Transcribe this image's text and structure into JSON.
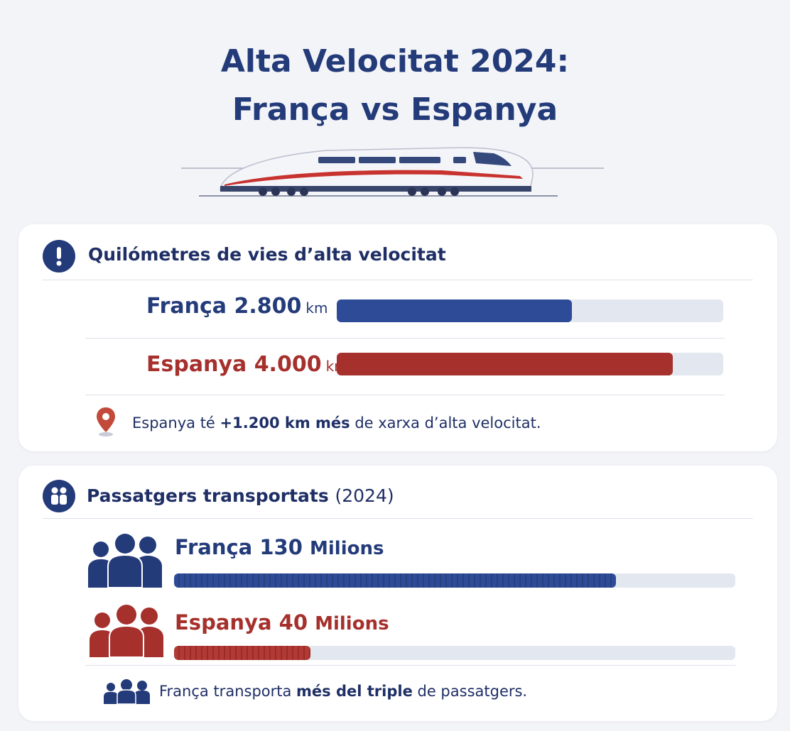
{
  "header": {
    "title_line1": "Alta Velocitat 2024:",
    "title_line2": "França vs Espanya"
  },
  "colors": {
    "france": "#2e4b97",
    "spain": "#a5302c",
    "navy": "#243b7a",
    "track": "#e3e7ef"
  },
  "chart_data": [
    {
      "type": "bar",
      "title": "Quilómetres de vies d’alta velocitat",
      "categories": [
        "França",
        "Espanya"
      ],
      "values": [
        2800,
        4000
      ],
      "value_labels": [
        "2.800",
        "4.000"
      ],
      "unit": "km",
      "xlim": [
        0,
        4600
      ],
      "icon": "exclamation-icon",
      "note": {
        "prefix": "Espanya té ",
        "bold": "+1.200 km més",
        "suffix": " de xarxa d’alta velocitat.",
        "icon": "map-pin-icon"
      }
    },
    {
      "type": "bar",
      "title": "Passatgers transportats",
      "title_suffix": "(2024)",
      "categories": [
        "França",
        "Espanya"
      ],
      "values": [
        130,
        40
      ],
      "value_labels": [
        "130",
        "40"
      ],
      "unit": "Milions",
      "xlim": [
        0,
        165
      ],
      "icon": "people-icon",
      "note": {
        "prefix": "França transporta ",
        "bold": "més del triple",
        "suffix": " de passatgers.",
        "icon": "people-group-icon"
      }
    }
  ]
}
